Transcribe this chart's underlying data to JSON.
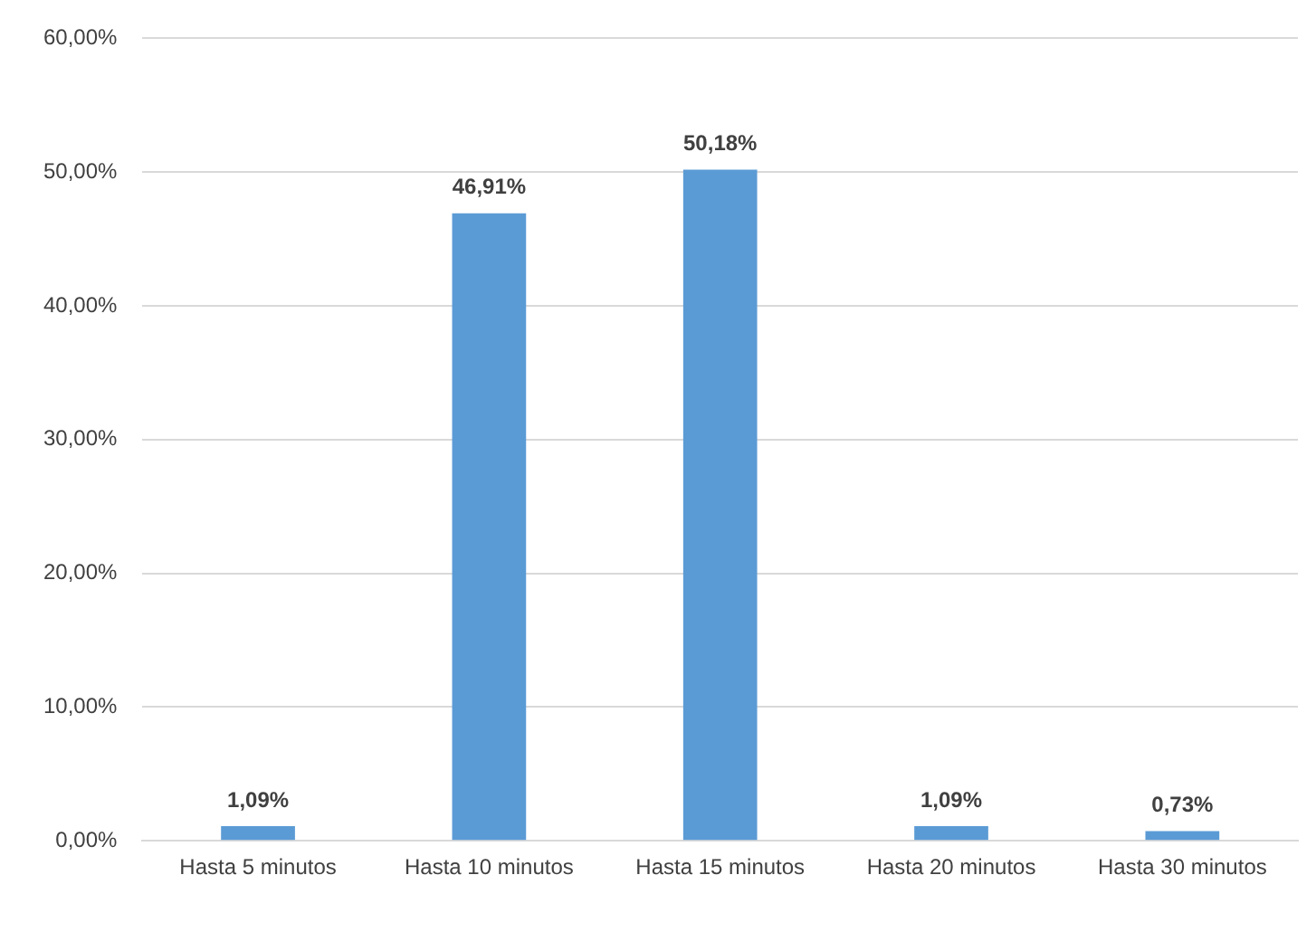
{
  "chart_data": {
    "type": "bar",
    "categories": [
      "Hasta 5 minutos",
      "Hasta 10 minutos",
      "Hasta 15 minutos",
      "Hasta 20 minutos",
      "Hasta 30 minutos"
    ],
    "values": [
      1.09,
      46.91,
      50.18,
      1.09,
      0.73
    ],
    "value_labels": [
      "1,09%",
      "46,91%",
      "50,18%",
      "1,09%",
      "0,73%"
    ],
    "color": "#5b9bd5",
    "ylim": [
      0,
      60
    ],
    "yticks": [
      {
        "value": 0,
        "label": "0,00%"
      },
      {
        "value": 10,
        "label": "10,00%"
      },
      {
        "value": 20,
        "label": "20,00%"
      },
      {
        "value": 30,
        "label": "30,00%"
      },
      {
        "value": 40,
        "label": "40,00%"
      },
      {
        "value": 50,
        "label": "50,00%"
      },
      {
        "value": 60,
        "label": "60,00%"
      }
    ],
    "grid": "y",
    "legend": false
  }
}
